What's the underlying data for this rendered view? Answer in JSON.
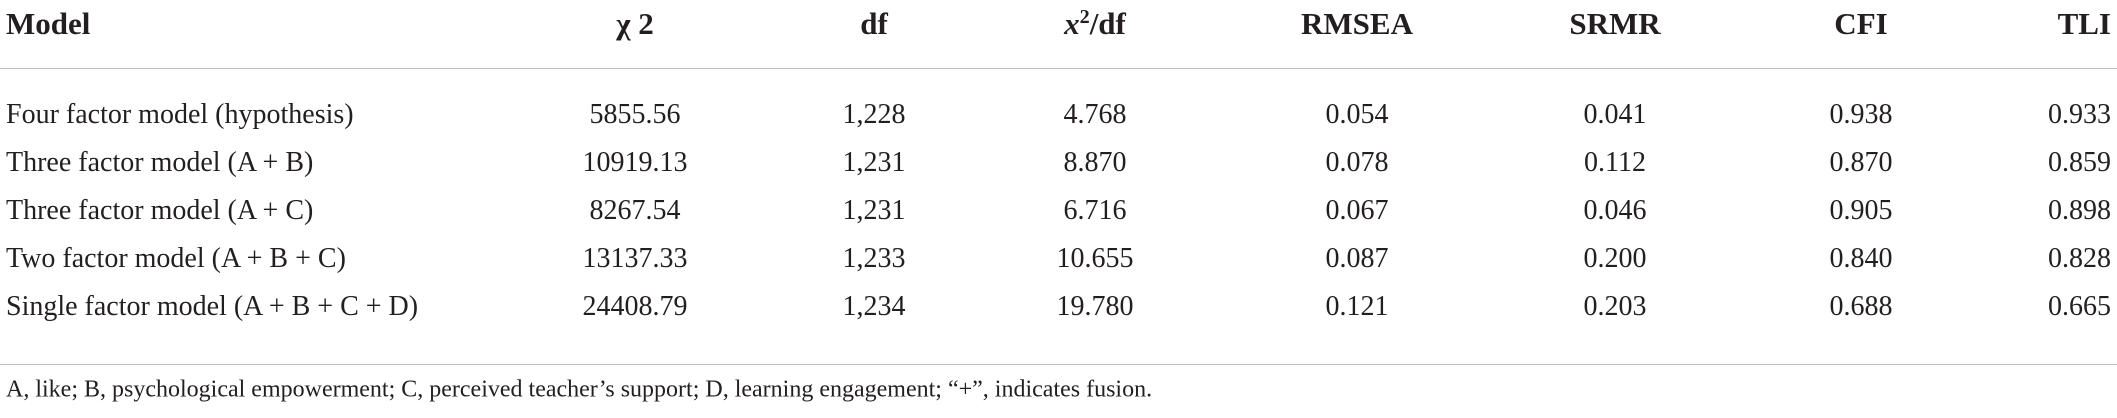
{
  "table": {
    "header": [
      "Model",
      "χ 2",
      "df",
      {
        "base": "x",
        "sup": "2",
        "rest": "/df"
      },
      "RMSEA",
      "SRMR",
      "CFI",
      "TLI"
    ],
    "rows": [
      [
        "Four factor model (hypothesis)",
        "5855.56",
        "1,228",
        "4.768",
        "0.054",
        "0.041",
        "0.938",
        "0.933"
      ],
      [
        "Three factor model (A + B)",
        "10919.13",
        "1,231",
        "8.870",
        "0.078",
        "0.112",
        "0.870",
        "0.859"
      ],
      [
        "Three factor model (A + C)",
        "8267.54",
        "1,231",
        "6.716",
        "0.067",
        "0.046",
        "0.905",
        "0.898"
      ],
      [
        "Two factor model (A + B + C)",
        "13137.33",
        "1,233",
        "10.655",
        "0.087",
        "0.200",
        "0.840",
        "0.828"
      ],
      [
        "Single factor model (A + B + C + D)",
        "24408.79",
        "1,234",
        "19.780",
        "0.121",
        "0.203",
        "0.688",
        "0.665"
      ]
    ]
  },
  "footnote": "A, like; B, psychological empowerment; C, perceived teacher’s support; D, learning engagement; “+”, indicates fusion."
}
